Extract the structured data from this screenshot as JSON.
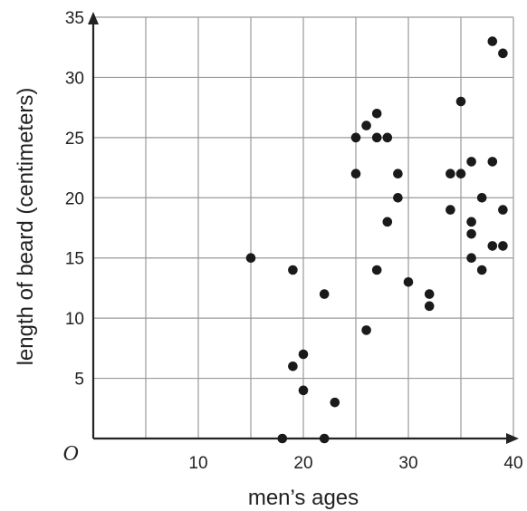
{
  "chart_data": {
    "type": "scatter",
    "title": "",
    "xlabel": "men’s ages",
    "ylabel": "length of beard (centimeters)",
    "origin_label": "O",
    "xlim": [
      0,
      40
    ],
    "ylim": [
      0,
      35
    ],
    "x_grid_step": 5,
    "y_grid_step": 5,
    "x_tick_labels": [
      10,
      20,
      30,
      40
    ],
    "y_tick_labels": [
      5,
      10,
      15,
      20,
      25,
      30,
      35
    ],
    "grid": true,
    "colors": {
      "grid": "#999999",
      "axis": "#222222",
      "point": "#1a1a1a"
    },
    "points": [
      {
        "x": 15,
        "y": 15
      },
      {
        "x": 18,
        "y": 0
      },
      {
        "x": 19,
        "y": 14
      },
      {
        "x": 19,
        "y": 6
      },
      {
        "x": 20,
        "y": 7
      },
      {
        "x": 20,
        "y": 4
      },
      {
        "x": 22,
        "y": 12
      },
      {
        "x": 22,
        "y": 0
      },
      {
        "x": 23,
        "y": 3
      },
      {
        "x": 25,
        "y": 25
      },
      {
        "x": 25,
        "y": 22
      },
      {
        "x": 26,
        "y": 26
      },
      {
        "x": 26,
        "y": 9
      },
      {
        "x": 27,
        "y": 27
      },
      {
        "x": 27,
        "y": 25
      },
      {
        "x": 27,
        "y": 14
      },
      {
        "x": 28,
        "y": 25
      },
      {
        "x": 28,
        "y": 18
      },
      {
        "x": 29,
        "y": 22
      },
      {
        "x": 29,
        "y": 20
      },
      {
        "x": 30,
        "y": 13
      },
      {
        "x": 32,
        "y": 12
      },
      {
        "x": 32,
        "y": 11
      },
      {
        "x": 34,
        "y": 22
      },
      {
        "x": 34,
        "y": 19
      },
      {
        "x": 35,
        "y": 28
      },
      {
        "x": 35,
        "y": 22
      },
      {
        "x": 36,
        "y": 23
      },
      {
        "x": 36,
        "y": 18
      },
      {
        "x": 36,
        "y": 17
      },
      {
        "x": 36,
        "y": 15
      },
      {
        "x": 37,
        "y": 20
      },
      {
        "x": 37,
        "y": 14
      },
      {
        "x": 38,
        "y": 33
      },
      {
        "x": 38,
        "y": 23
      },
      {
        "x": 38,
        "y": 16
      },
      {
        "x": 39,
        "y": 32
      },
      {
        "x": 39,
        "y": 19
      },
      {
        "x": 39,
        "y": 16
      }
    ]
  }
}
